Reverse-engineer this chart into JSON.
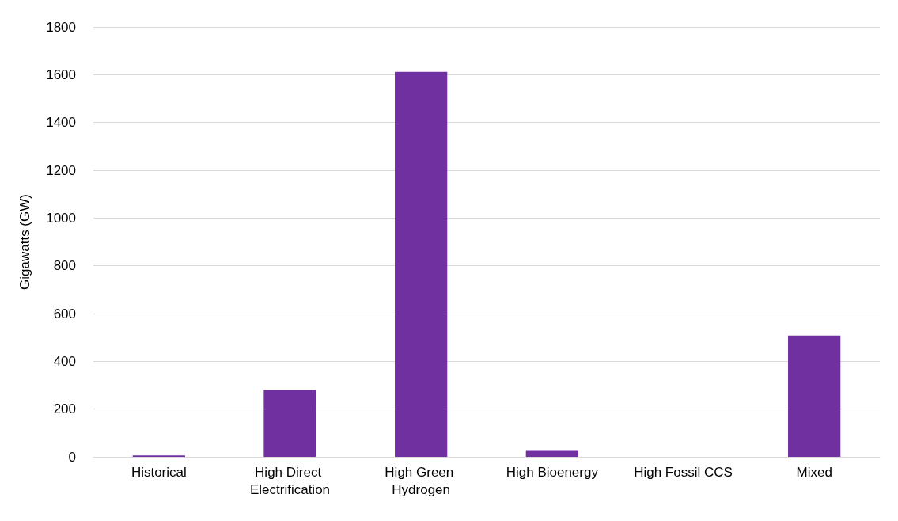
{
  "chart_data": {
    "type": "bar",
    "ylabel": "Gigawatts (GW)",
    "categories": [
      "Historical",
      "High Direct Electrification",
      "High Green Hydrogen",
      "High Bioenergy",
      "High Fossil CCS",
      "Mixed"
    ],
    "values": [
      6,
      280,
      1612,
      28,
      0,
      508
    ],
    "color": "#7030a0",
    "ylim": [
      0,
      1800
    ],
    "yticks": [
      0,
      200,
      400,
      600,
      800,
      1000,
      1200,
      1400,
      1600,
      1800
    ],
    "grid": "y"
  }
}
